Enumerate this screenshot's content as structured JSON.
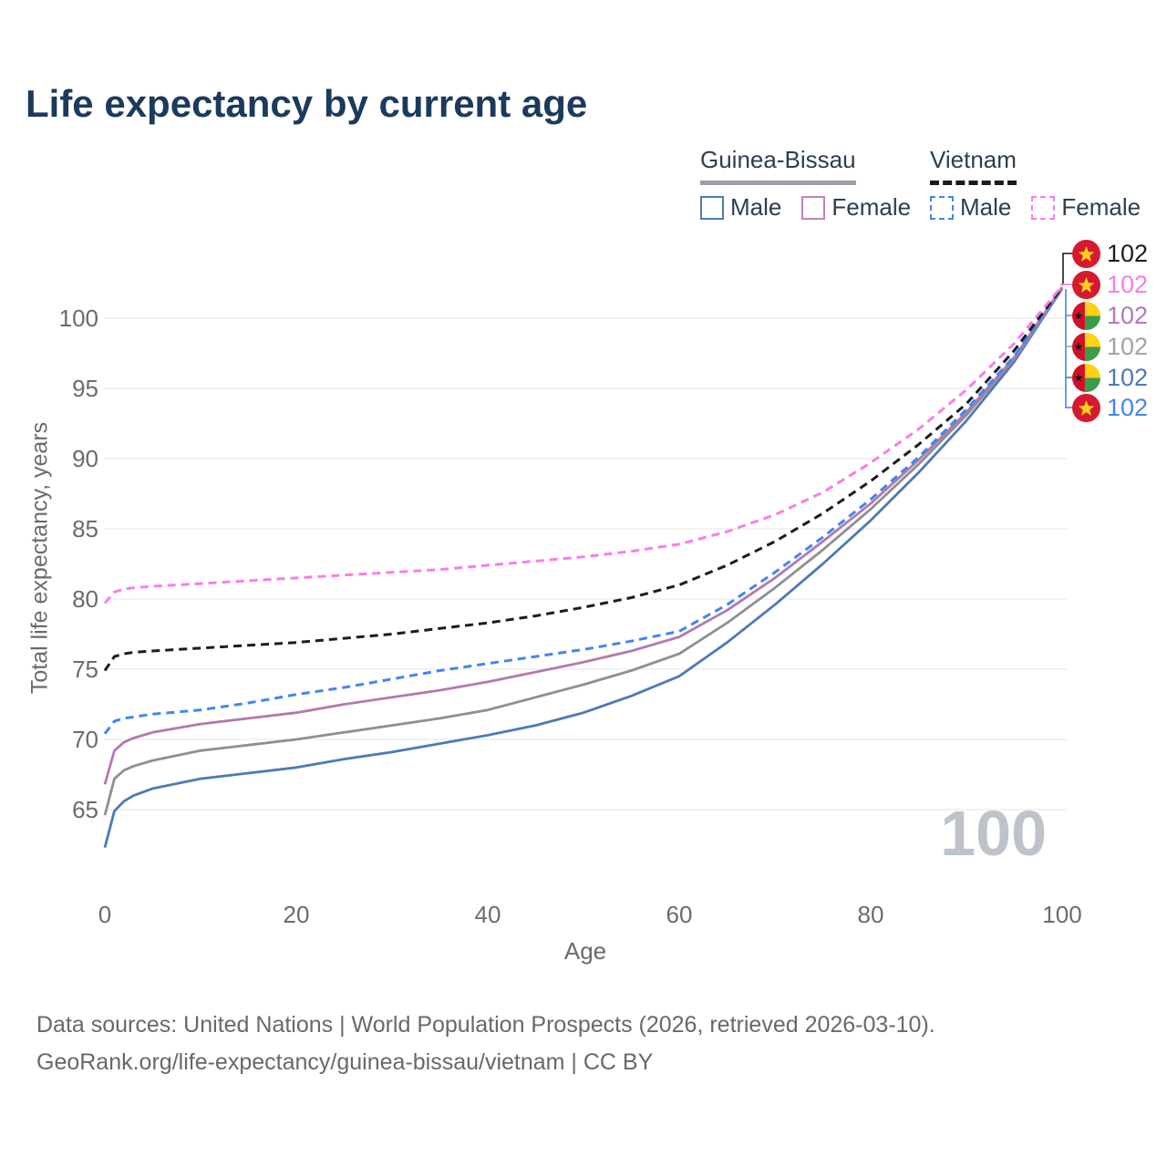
{
  "title": "Life expectancy by current age",
  "watermark": "100",
  "legend": {
    "groups": [
      {
        "name": "Guinea-Bissau",
        "line_style": "solid",
        "underline_color": "#9aa0a6",
        "items": [
          {
            "label": "Male",
            "color": "#4d7ab5",
            "dashed": false
          },
          {
            "label": "Female",
            "color": "#c283bd",
            "dashed": false
          }
        ]
      },
      {
        "name": "Vietnam",
        "line_style": "dashed",
        "underline_color": "#1a1a1a",
        "items": [
          {
            "label": "Male",
            "color": "#4285f4",
            "dashed": true
          },
          {
            "label": "Female",
            "color": "#fb7ce8",
            "dashed": true
          }
        ]
      }
    ]
  },
  "chart_data": {
    "type": "line",
    "title": "Life expectancy by current age",
    "xlabel": "Age",
    "ylabel": "Total life expectancy, years",
    "xlim": [
      0,
      100
    ],
    "ylim": [
      62,
      103
    ],
    "xticks": [
      0,
      20,
      40,
      60,
      80,
      100
    ],
    "yticks": [
      65,
      70,
      75,
      80,
      85,
      90,
      95,
      100
    ],
    "grid": "horizontal",
    "legend_position": "top-right",
    "x": [
      0,
      1,
      2,
      3,
      5,
      10,
      15,
      20,
      25,
      30,
      35,
      40,
      45,
      50,
      55,
      60,
      65,
      70,
      75,
      80,
      85,
      90,
      95,
      100
    ],
    "series": [
      {
        "name": "Guinea-Bissau Male",
        "country": "Guinea-Bissau",
        "sex": "male",
        "color": "#4d7ab5",
        "dashed": false,
        "values": [
          62.3,
          64.9,
          65.6,
          66.0,
          66.5,
          67.2,
          67.6,
          68.0,
          68.6,
          69.1,
          69.7,
          70.3,
          71.0,
          71.9,
          73.1,
          74.5,
          76.9,
          79.6,
          82.5,
          85.6,
          89.0,
          92.7,
          96.9,
          102.1
        ]
      },
      {
        "name": "Guinea-Bissau Both sexes",
        "country": "Guinea-Bissau",
        "sex": "both",
        "color": "#8f8f8f",
        "dashed": false,
        "values": [
          64.6,
          67.2,
          67.8,
          68.1,
          68.5,
          69.2,
          69.6,
          70.0,
          70.5,
          71.0,
          71.5,
          72.1,
          73.0,
          73.9,
          74.9,
          76.1,
          78.3,
          80.8,
          83.5,
          86.4,
          89.6,
          93.1,
          97.1,
          102.15
        ]
      },
      {
        "name": "Guinea-Bissau Female",
        "country": "Guinea-Bissau",
        "sex": "female",
        "color": "#b279ae",
        "dashed": false,
        "values": [
          66.8,
          69.2,
          69.8,
          70.1,
          70.5,
          71.1,
          71.5,
          71.9,
          72.5,
          73.0,
          73.5,
          74.1,
          74.8,
          75.5,
          76.3,
          77.3,
          79.2,
          81.5,
          84.1,
          86.8,
          89.9,
          93.3,
          97.2,
          102.2
        ]
      },
      {
        "name": "Vietnam Male",
        "country": "Vietnam",
        "sex": "male",
        "color": "#4285f4",
        "dashed": true,
        "values": [
          70.4,
          71.3,
          71.5,
          71.6,
          71.8,
          72.1,
          72.6,
          73.2,
          73.7,
          74.3,
          74.9,
          75.4,
          75.9,
          76.4,
          77.0,
          77.7,
          79.6,
          81.9,
          84.4,
          87.1,
          90.1,
          93.5,
          97.3,
          102.2
        ]
      },
      {
        "name": "Vietnam Both sexes",
        "country": "Vietnam",
        "sex": "both",
        "color": "#1c1c1c",
        "dashed": true,
        "values": [
          74.9,
          75.9,
          76.1,
          76.2,
          76.3,
          76.5,
          76.7,
          76.9,
          77.2,
          77.5,
          77.9,
          78.3,
          78.8,
          79.4,
          80.1,
          81.0,
          82.4,
          84.1,
          86.1,
          88.4,
          91.0,
          93.9,
          97.7,
          102.2
        ]
      },
      {
        "name": "Vietnam Female",
        "country": "Vietnam",
        "sex": "female",
        "color": "#fb7ce8",
        "dashed": true,
        "values": [
          79.7,
          80.5,
          80.7,
          80.8,
          80.9,
          81.1,
          81.3,
          81.5,
          81.7,
          81.9,
          82.1,
          82.4,
          82.7,
          83.0,
          83.4,
          83.9,
          84.8,
          86.0,
          87.6,
          89.7,
          92.1,
          94.9,
          98.2,
          102.3
        ]
      }
    ]
  },
  "end_labels": [
    {
      "value": "102",
      "flag": "vn",
      "series": "Vietnam Both sexes",
      "color": "#1c1c1c"
    },
    {
      "value": "102",
      "flag": "vn",
      "series": "Vietnam Female",
      "color": "#fb7ce8"
    },
    {
      "value": "102",
      "flag": "gw",
      "series": "Guinea-Bissau Female",
      "color": "#b279b8"
    },
    {
      "value": "102",
      "flag": "gw",
      "series": "Guinea-Bissau Both sexes",
      "color": "#a3a3a3"
    },
    {
      "value": "102",
      "flag": "gw",
      "series": "Guinea-Bissau Male",
      "color": "#4d7ab5"
    },
    {
      "value": "102",
      "flag": "vn",
      "series": "Vietnam Male",
      "color": "#4285f4"
    }
  ],
  "flag_colors": {
    "vietnam_red": "#d6192e",
    "vietnam_star": "#f7d117",
    "gw_red": "#ce1126",
    "gw_yellow": "#fcd116",
    "gw_green": "#3d9b4c",
    "gw_star": "#1a1a1a"
  },
  "footer": {
    "line1": "Data sources: United Nations | World Population Prospects (2026, retrieved 2026-03-10).",
    "line2": "GeoRank.org/life-expectancy/guinea-bissau/vietnam | CC BY"
  }
}
